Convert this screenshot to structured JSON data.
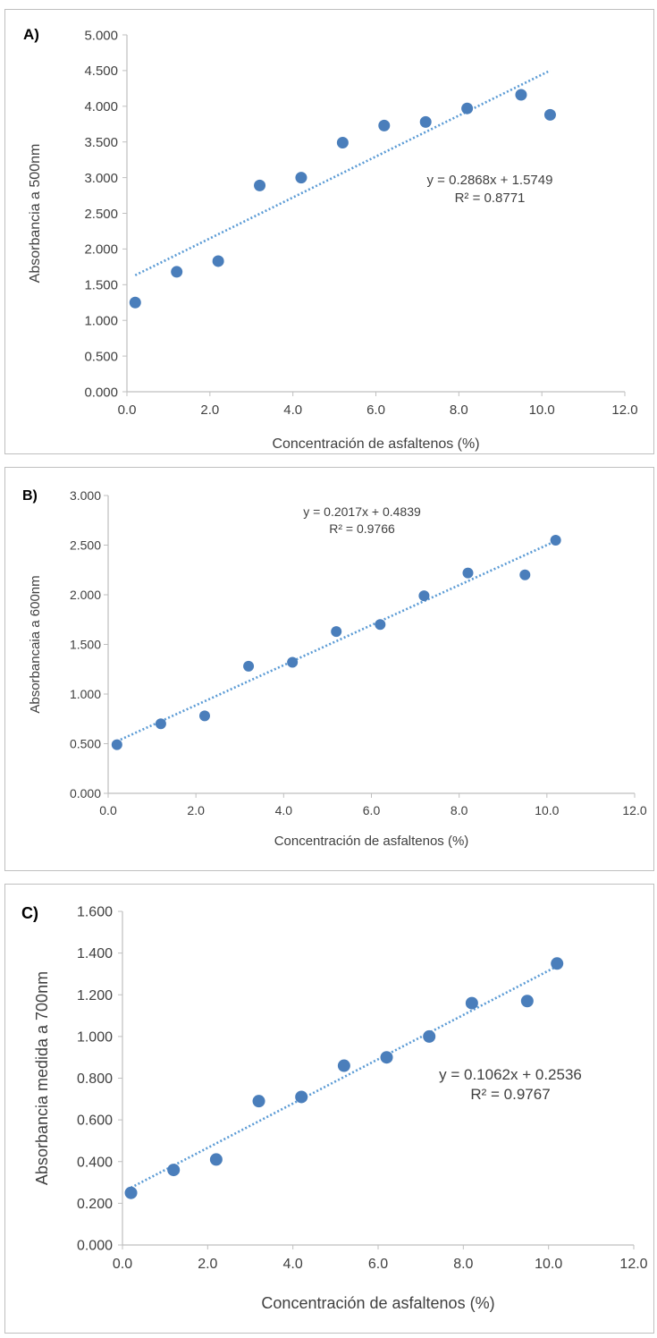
{
  "colors": {
    "marker": "#4a7ebb",
    "trendline": "#5b9bd5",
    "axis": "#bfbfbf",
    "text": "#404040"
  },
  "chart_data": [
    {
      "panel": "A)",
      "type": "scatter",
      "xlabel": "Concentración de asfaltenos (%)",
      "ylabel": "Absorbancia  a 500nm",
      "xlim": [
        0,
        12
      ],
      "ylim": [
        0,
        5
      ],
      "xticks": [
        "0.0",
        "2.0",
        "4.0",
        "6.0",
        "8.0",
        "10.0",
        "12.0"
      ],
      "yticks": [
        "0.000",
        "0.500",
        "1.000",
        "1.500",
        "2.000",
        "2.500",
        "3.000",
        "3.500",
        "4.000",
        "4.500",
        "5.000"
      ],
      "x": [
        0.2,
        1.2,
        2.2,
        3.2,
        4.2,
        5.2,
        6.2,
        7.2,
        8.2,
        9.5,
        10.2
      ],
      "y": [
        1.25,
        1.68,
        1.83,
        2.89,
        3.0,
        3.49,
        3.73,
        3.78,
        3.97,
        4.16,
        3.88
      ],
      "trendline": {
        "type": "linear",
        "slope": 0.2868,
        "intercept": 1.5749,
        "x_range": [
          0.2,
          10.2
        ]
      },
      "equation": "y = 0.2868x + 1.5749",
      "r2": "R² = 0.8771",
      "grid": false,
      "legend": "none"
    },
    {
      "panel": "B)",
      "type": "scatter",
      "xlabel": "Concentración de asfaltenos (%)",
      "ylabel": "Absorbancaia  a  600nm",
      "xlim": [
        0,
        12
      ],
      "ylim": [
        0,
        3
      ],
      "xticks": [
        "0.0",
        "2.0",
        "4.0",
        "6.0",
        "8.0",
        "10.0",
        "12.0"
      ],
      "yticks": [
        "0.000",
        "0.500",
        "1.000",
        "1.500",
        "2.000",
        "2.500",
        "3.000"
      ],
      "x": [
        0.2,
        1.2,
        2.2,
        3.2,
        4.2,
        5.2,
        6.2,
        7.2,
        8.2,
        9.5,
        10.2
      ],
      "y": [
        0.49,
        0.7,
        0.78,
        1.28,
        1.32,
        1.63,
        1.7,
        1.99,
        2.22,
        2.2,
        2.55
      ],
      "trendline": {
        "type": "linear",
        "slope": 0.2017,
        "intercept": 0.4839,
        "x_range": [
          0.2,
          10.2
        ]
      },
      "equation": "y = 0.2017x + 0.4839",
      "r2": "R² = 0.9766",
      "grid": false,
      "legend": "none"
    },
    {
      "panel": "C)",
      "type": "scatter",
      "xlabel": "Concentración de asfaltenos (%)",
      "ylabel": "Absorbancia medida a 700nm",
      "xlim": [
        0,
        12
      ],
      "ylim": [
        0,
        1.6
      ],
      "xticks": [
        "0.0",
        "2.0",
        "4.0",
        "6.0",
        "8.0",
        "10.0",
        "12.0"
      ],
      "yticks": [
        "0.000",
        "0.200",
        "0.400",
        "0.600",
        "0.800",
        "1.000",
        "1.200",
        "1.400",
        "1.600"
      ],
      "x": [
        0.2,
        1.2,
        2.2,
        3.2,
        4.2,
        5.2,
        6.2,
        7.2,
        8.2,
        9.5,
        10.2
      ],
      "y": [
        0.25,
        0.36,
        0.41,
        0.69,
        0.71,
        0.86,
        0.9,
        1.0,
        1.16,
        1.17,
        1.35
      ],
      "trendline": {
        "type": "linear",
        "slope": 0.1062,
        "intercept": 0.2536,
        "x_range": [
          0.2,
          10.2
        ]
      },
      "equation": "y = 0.1062x + 0.2536",
      "r2": "R² = 0.9767",
      "grid": false,
      "legend": "none"
    }
  ]
}
